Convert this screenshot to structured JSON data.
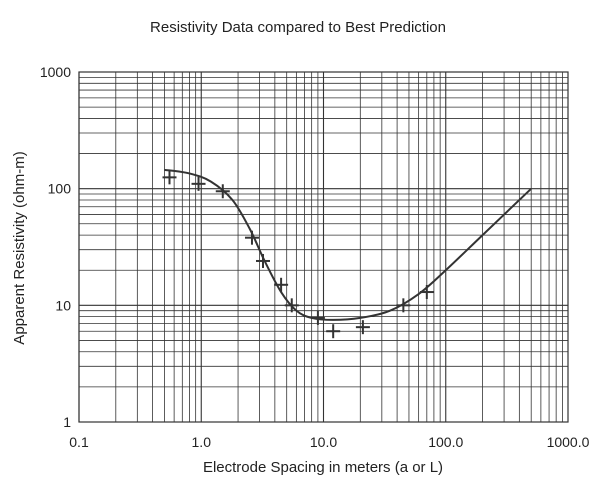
{
  "chart_data": {
    "type": "scatter",
    "title": "Resistivity Data compared to Best Prediction",
    "xlabel": "Electrode Spacing in meters (a or L)",
    "ylabel": "Apparent Resistivity (ohm-m)",
    "xscale": "log",
    "yscale": "log",
    "xlim": [
      0.1,
      1000
    ],
    "ylim": [
      1,
      1000
    ],
    "x_tick_labels": [
      "0.1",
      "1.0",
      "10.0",
      "100.0",
      "1000.0"
    ],
    "y_tick_labels": [
      "1",
      "10",
      "100",
      "1000"
    ],
    "grid": true,
    "legend": "none",
    "series": [
      {
        "kind": "markers",
        "marker": "plus",
        "x": [
          0.55,
          0.95,
          1.5,
          2.6,
          3.2,
          4.5,
          5.5,
          9.0,
          12.0,
          21.0,
          45.0,
          70.0
        ],
        "y": [
          125,
          110,
          95,
          38,
          24,
          15,
          10,
          7.8,
          6.0,
          6.5,
          10,
          13
        ]
      },
      {
        "kind": "line",
        "x": [
          0.5,
          0.8,
          1.2,
          1.8,
          2.5,
          3.3,
          4.5,
          6.0,
          8.0,
          12.0,
          20.0,
          35.0,
          60.0,
          100.0,
          200.0,
          500.0
        ],
        "y": [
          145,
          135,
          115,
          80,
          45,
          24,
          13,
          9.0,
          7.8,
          7.5,
          7.8,
          9.0,
          12.5,
          20,
          40,
          100
        ]
      }
    ],
    "colors": {
      "line": "#333333",
      "marker": "#333333",
      "grid": "#333333"
    }
  }
}
